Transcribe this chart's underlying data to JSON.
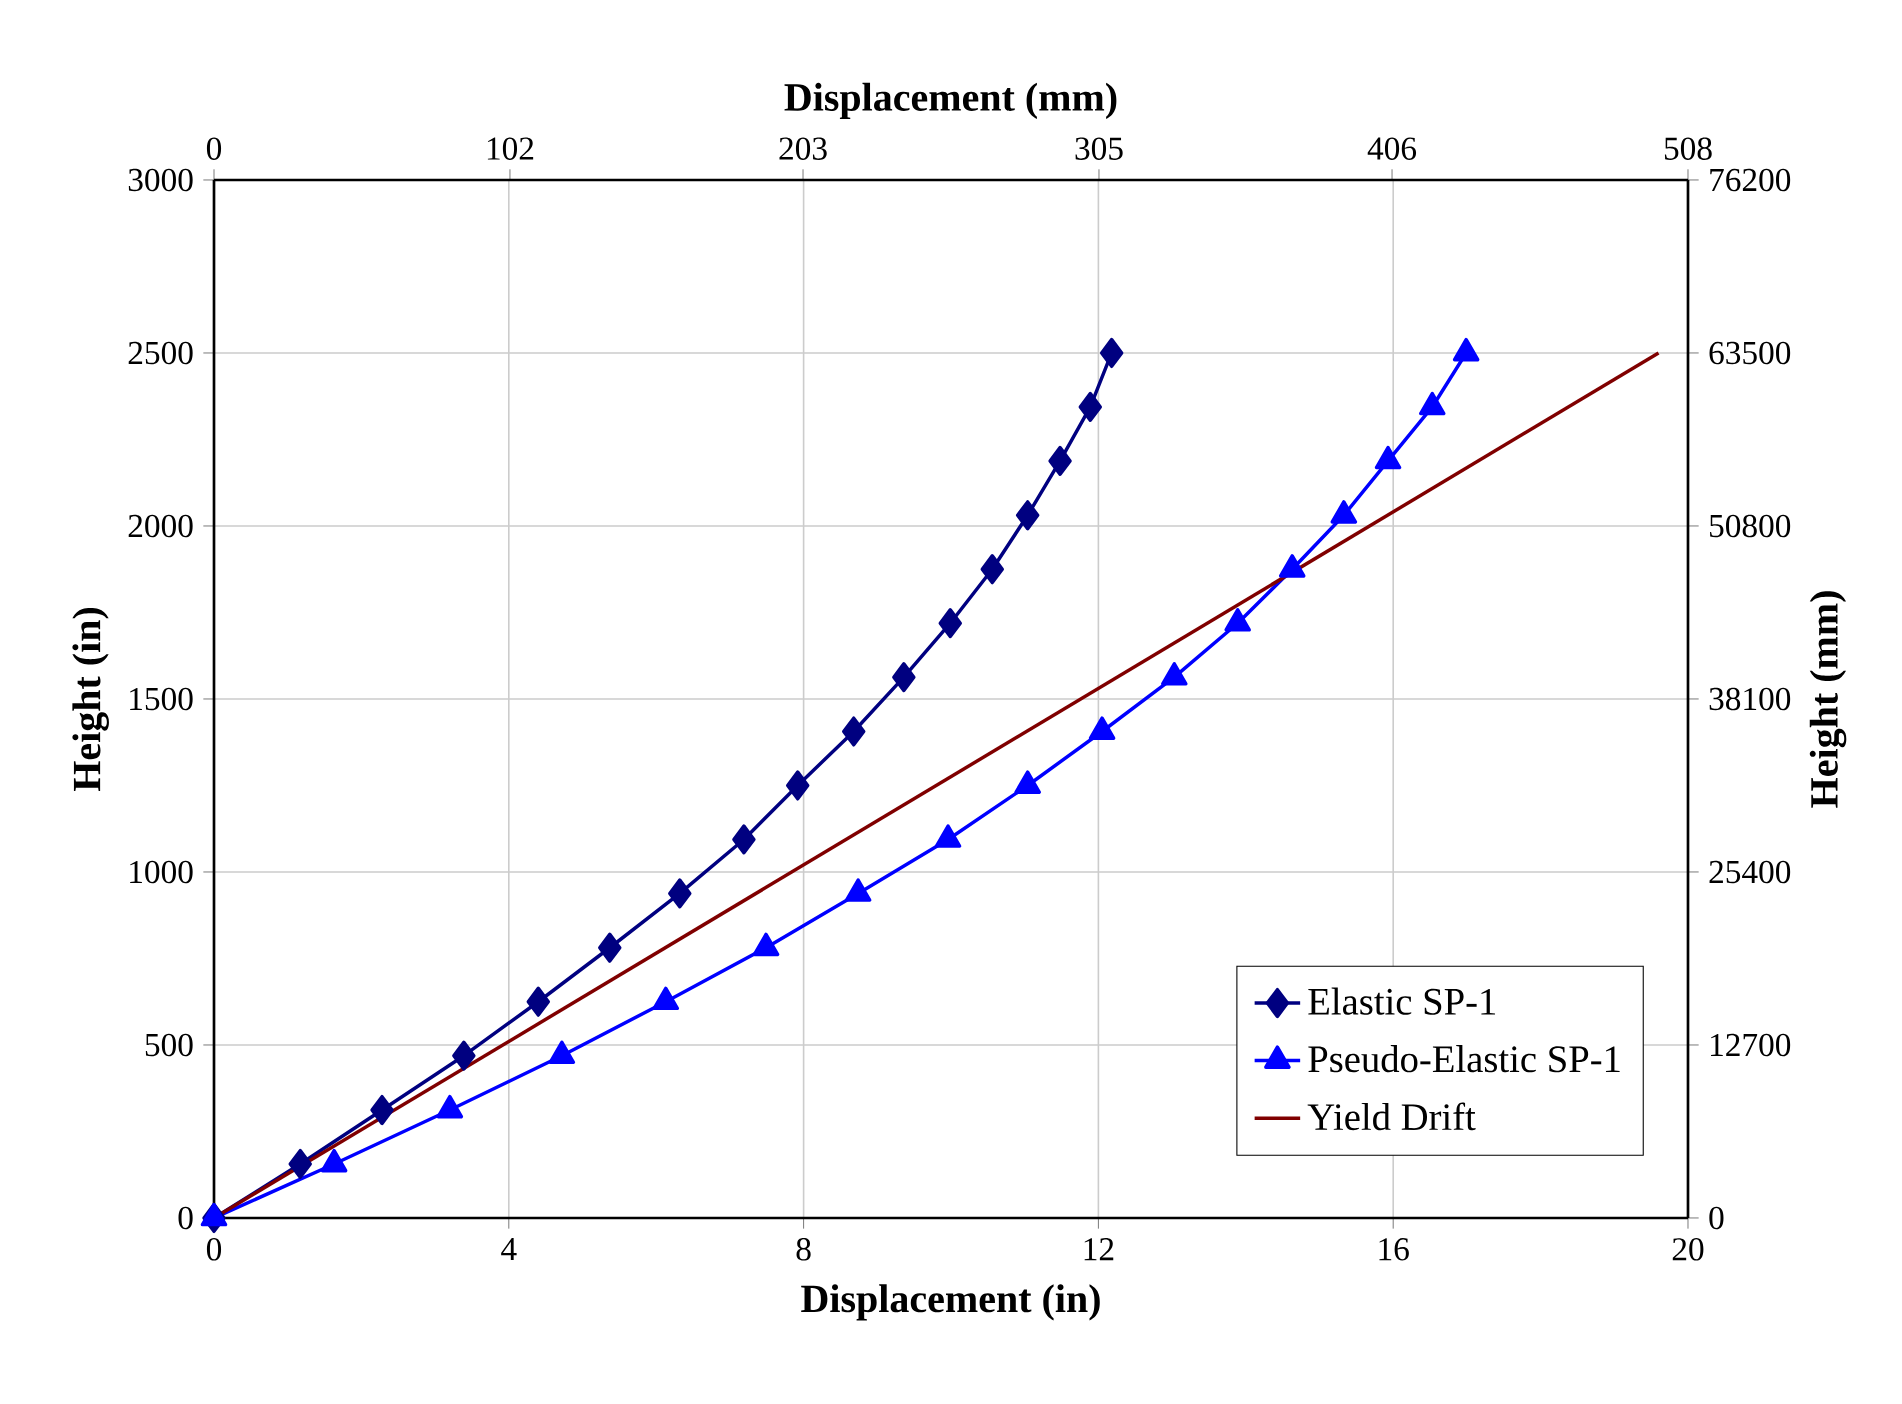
{
  "chart_data": {
    "type": "line",
    "xlabel": "Displacement (in)",
    "ylabel": "Height (in)",
    "x2label": "Displacement (mm)",
    "y2label": "Height (mm)",
    "xlim": [
      0,
      20
    ],
    "xticks": [
      0,
      4,
      8,
      12,
      16,
      20
    ],
    "ylim": [
      0,
      3000
    ],
    "yticks": [
      0,
      500,
      1000,
      1500,
      2000,
      2500,
      3000
    ],
    "x2lim": [
      0,
      508
    ],
    "x2ticks": [
      0,
      102,
      203,
      305,
      406,
      508
    ],
    "y2lim": [
      0,
      76200
    ],
    "y2ticks": [
      0,
      12700,
      25400,
      38100,
      50800,
      63500,
      76200
    ],
    "grid": true,
    "legend": "bottom right",
    "series": [
      {
        "name": "Elastic SP-1",
        "color": "#000080",
        "marker": "diamond",
        "x": [
          0,
          1.17,
          2.28,
          3.39,
          4.4,
          5.37,
          6.32,
          7.19,
          7.92,
          8.68,
          9.36,
          9.99,
          10.56,
          11.04,
          11.48,
          11.89,
          12.18
        ],
        "values": [
          0,
          156,
          312,
          469,
          625,
          781,
          938,
          1094,
          1250,
          1406,
          1563,
          1719,
          1875,
          2031,
          2188,
          2344,
          2500
        ]
      },
      {
        "name": "Pseudo-Elastic SP-1",
        "color": "#0000ff",
        "marker": "triangle",
        "x": [
          0,
          1.63,
          3.2,
          4.72,
          6.13,
          7.49,
          8.74,
          9.96,
          11.04,
          12.05,
          13.03,
          13.89,
          14.63,
          15.33,
          15.93,
          16.53,
          16.99
        ],
        "values": [
          0,
          156,
          312,
          469,
          625,
          781,
          938,
          1094,
          1250,
          1406,
          1563,
          1719,
          1875,
          2031,
          2188,
          2344,
          2500
        ]
      },
      {
        "name": "Yield Drift",
        "color": "#800000",
        "marker": "none",
        "x": [
          0,
          19.6
        ],
        "values": [
          0,
          2500
        ]
      }
    ]
  }
}
